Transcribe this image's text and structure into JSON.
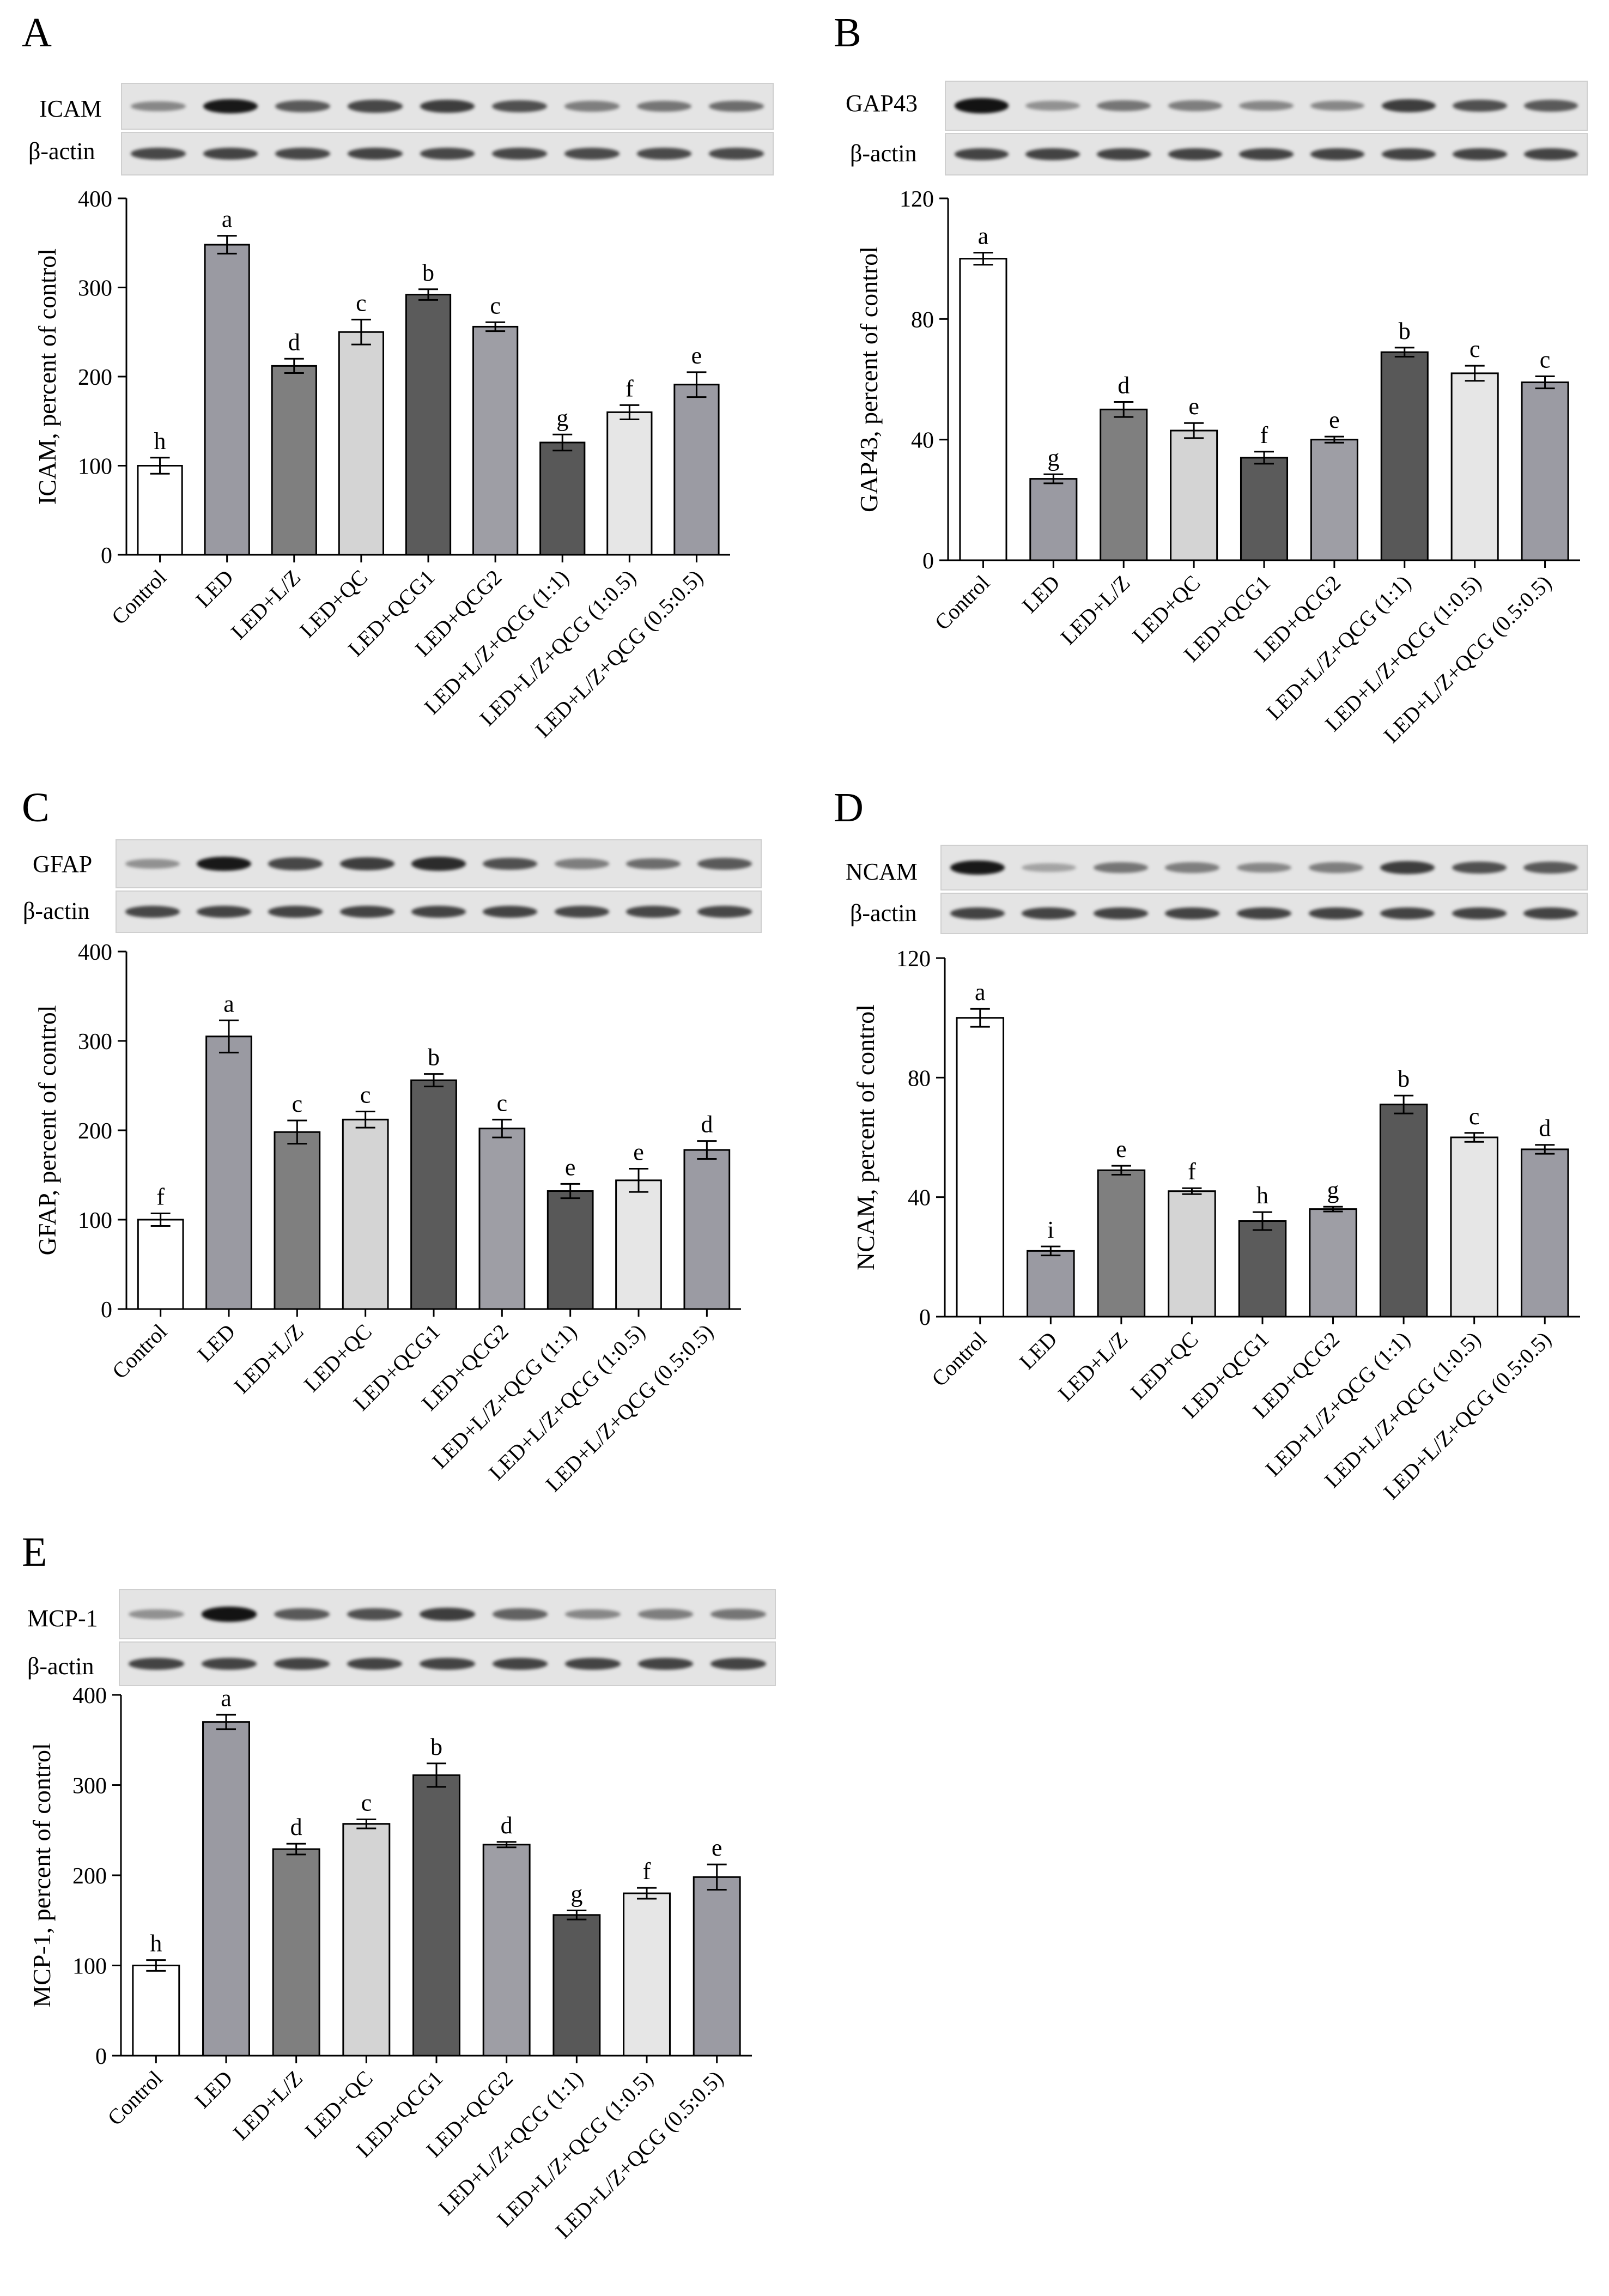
{
  "bar_colors": [
    "#ffffff",
    "#9a9aa2",
    "#7f7f7f",
    "#d4d4d4",
    "#5b5b5b",
    "#9e9ea5",
    "#585858",
    "#e6e6e6",
    "#9b9ba3"
  ],
  "loading_control": "β-actin",
  "chart_data": [
    {
      "type": "bar",
      "panel": "A",
      "blot_label": "ICAM",
      "ylabel": "ICAM, percent of control",
      "categories": [
        "Control",
        "LED",
        "LED+L/Z",
        "LED+QC",
        "LED+QCG1",
        "LED+QCG2",
        "LED+L/Z+QCG (1:1)",
        "LED+L/Z+QCG (1:0.5)",
        "LED+L/Z+QCG (0.5:0.5)"
      ],
      "values": [
        100,
        348,
        212,
        250,
        292,
        256,
        126,
        160,
        191
      ],
      "errors": [
        9,
        10,
        8,
        14,
        6,
        5,
        9,
        8,
        14
      ],
      "letters": [
        "h",
        "a",
        "d",
        "c",
        "b",
        "c",
        "g",
        "f",
        "e"
      ],
      "ylim": [
        0,
        400
      ],
      "yticks": [
        "0",
        "100",
        "200",
        "300",
        "400"
      ],
      "band_intensity": [
        0.35,
        0.95,
        0.6,
        0.7,
        0.75,
        0.65,
        0.4,
        0.45,
        0.5
      ],
      "actin_intensity": [
        0.7,
        0.72,
        0.7,
        0.72,
        0.7,
        0.7,
        0.68,
        0.68,
        0.68
      ]
    },
    {
      "type": "bar",
      "panel": "B",
      "blot_label": "GAP43",
      "ylabel": "GAP43, percent of control",
      "categories": [
        "Control",
        "LED",
        "LED+L/Z",
        "LED+QC",
        "LED+QCG1",
        "LED+QCG2",
        "LED+L/Z+QCG (1:1)",
        "LED+L/Z+QCG (1:0.5)",
        "LED+L/Z+QCG (0.5:0.5)"
      ],
      "values": [
        100,
        27,
        50,
        43,
        34,
        40,
        69,
        62,
        59
      ],
      "errors": [
        2,
        1.5,
        2.5,
        2.5,
        2,
        1,
        1.5,
        2.5,
        2
      ],
      "letters": [
        "a",
        "g",
        "d",
        "e",
        "f",
        "e",
        "b",
        "c",
        "c"
      ],
      "ylim": [
        0,
        120
      ],
      "yticks": [
        "0",
        "40",
        "80",
        "120"
      ],
      "band_intensity": [
        0.98,
        0.3,
        0.45,
        0.4,
        0.35,
        0.35,
        0.75,
        0.65,
        0.6
      ],
      "actin_intensity": [
        0.72,
        0.72,
        0.72,
        0.72,
        0.72,
        0.72,
        0.72,
        0.72,
        0.72
      ]
    },
    {
      "type": "bar",
      "panel": "C",
      "blot_label": "GFAP",
      "ylabel": "GFAP, percent of control",
      "categories": [
        "Control",
        "LED",
        "LED+L/Z",
        "LED+QC",
        "LED+QCG1",
        "LED+QCG2",
        "LED+L/Z+QCG (1:1)",
        "LED+L/Z+QCG (1:0.5)",
        "LED+L/Z+QCG (0.5:0.5)"
      ],
      "values": [
        100,
        305,
        198,
        212,
        256,
        202,
        132,
        144,
        178
      ],
      "errors": [
        7,
        18,
        13,
        9,
        7,
        10,
        8,
        13,
        10
      ],
      "letters": [
        "f",
        "a",
        "c",
        "c",
        "b",
        "c",
        "e",
        "e",
        "d"
      ],
      "ylim": [
        0,
        400
      ],
      "yticks": [
        "0",
        "100",
        "200",
        "300",
        "400"
      ],
      "band_intensity": [
        0.3,
        0.95,
        0.7,
        0.75,
        0.85,
        0.65,
        0.4,
        0.5,
        0.6
      ],
      "actin_intensity": [
        0.7,
        0.72,
        0.72,
        0.72,
        0.72,
        0.72,
        0.7,
        0.7,
        0.7
      ]
    },
    {
      "type": "bar",
      "panel": "D",
      "blot_label": "NCAM",
      "ylabel": "NCAM, percent of control",
      "categories": [
        "Control",
        "LED",
        "LED+L/Z",
        "LED+QC",
        "LED+QCG1",
        "LED+QCG2",
        "LED+L/Z+QCG (1:1)",
        "LED+L/Z+QCG (1:0.5)",
        "LED+L/Z+QCG (0.5:0.5)"
      ],
      "values": [
        100,
        22,
        49,
        42,
        32,
        36,
        71,
        60,
        56
      ],
      "errors": [
        3,
        1.5,
        1.5,
        1,
        3,
        0.8,
        3,
        1.5,
        1.5
      ],
      "letters": [
        "a",
        "i",
        "e",
        "f",
        "h",
        "g",
        "b",
        "c",
        "d"
      ],
      "ylim": [
        0,
        120
      ],
      "yticks": [
        "0",
        "40",
        "80",
        "120"
      ],
      "band_intensity": [
        0.95,
        0.2,
        0.45,
        0.4,
        0.35,
        0.4,
        0.75,
        0.65,
        0.6
      ],
      "actin_intensity": [
        0.72,
        0.72,
        0.72,
        0.72,
        0.72,
        0.72,
        0.72,
        0.72,
        0.72
      ]
    },
    {
      "type": "bar",
      "panel": "E",
      "blot_label": "MCP-1",
      "ylabel": "MCP-1, percent of control",
      "categories": [
        "Control",
        "LED",
        "LED+L/Z",
        "LED+QC",
        "LED+QCG1",
        "LED+QCG2",
        "LED+L/Z+QCG (1:1)",
        "LED+L/Z+QCG (1:0.5)",
        "LED+L/Z+QCG (0.5:0.5)"
      ],
      "values": [
        100,
        370,
        229,
        257,
        311,
        234,
        156,
        180,
        198
      ],
      "errors": [
        6,
        8,
        6,
        5,
        13,
        3,
        5,
        6,
        14
      ],
      "letters": [
        "h",
        "a",
        "d",
        "c",
        "b",
        "d",
        "g",
        "f",
        "e"
      ],
      "ylim": [
        0,
        400
      ],
      "yticks": [
        "0",
        "100",
        "200",
        "300",
        "400"
      ],
      "band_intensity": [
        0.3,
        0.98,
        0.6,
        0.65,
        0.75,
        0.55,
        0.35,
        0.4,
        0.45
      ],
      "actin_intensity": [
        0.72,
        0.72,
        0.72,
        0.72,
        0.72,
        0.72,
        0.72,
        0.72,
        0.72
      ]
    }
  ]
}
